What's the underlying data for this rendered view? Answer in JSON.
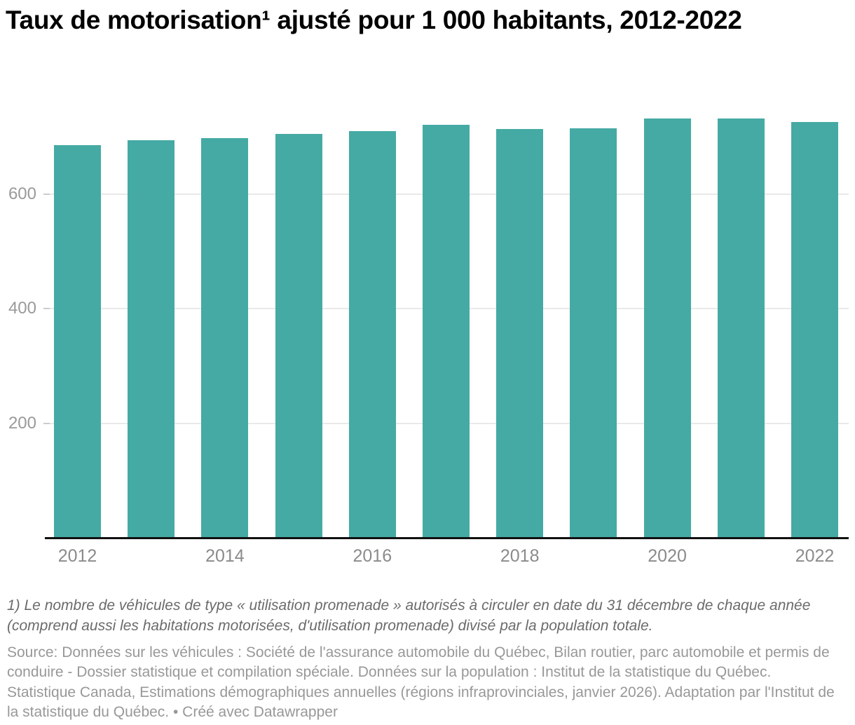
{
  "title": "Taux de motorisation¹ ajusté pour 1 000 habitants, 2012-2022",
  "chart_data": {
    "type": "bar",
    "title": "Taux de motorisation¹ ajusté pour 1 000 habitants, 2012-2022",
    "categories": [
      "2012",
      "2013",
      "2014",
      "2015",
      "2016",
      "2017",
      "2018",
      "2019",
      "2020",
      "2021",
      "2022"
    ],
    "values": [
      686,
      695,
      698,
      705,
      711,
      721,
      714,
      715,
      733,
      732,
      726
    ],
    "xlabel": "",
    "ylabel": "",
    "ylim": [
      0,
      768
    ],
    "yticks": [
      200,
      400,
      600
    ],
    "x_tick_labels": [
      "2012",
      "2014",
      "2016",
      "2018",
      "2020",
      "2022"
    ],
    "grid": "horizontal",
    "legend": "none"
  },
  "colors": {
    "bar": "#45aaa4",
    "gridline": "#e9e9e9",
    "tick": "#cccccc",
    "baseline": "#111111",
    "y_label": "#9a9a9a",
    "x_label": "#8b8b8b",
    "title": "#000000",
    "footnote": "#6b6b6b",
    "source": "#989898"
  },
  "footnote": "1) Le nombre de véhicules de type « utilisation promenade » autorisés à circuler en date du 31 décembre de chaque année (comprend aussi les habitations motorisées, d'utilisation promenade) divisé par la population totale.",
  "source": "Source: Données sur les véhicules : Société de l'assurance automobile du Québec, Bilan routier, parc automobile et permis de conduire - Dossier statistique et compilation spéciale. Données sur la population : Institut de la statistique du Québec. Statistique Canada, Estimations démographiques annuelles (régions infraprovinciales, janvier 2026). Adaptation par l'Institut de la statistique du Québec. • Créé avec Datawrapper"
}
